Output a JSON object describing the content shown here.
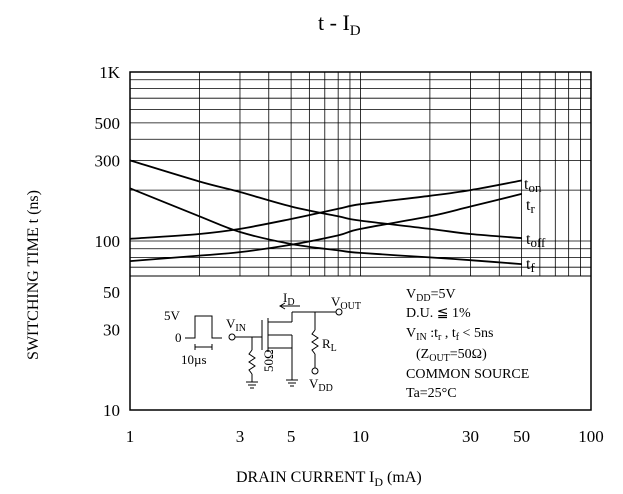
{
  "chart_data": {
    "type": "line",
    "title": {
      "main": "t  -  I",
      "sub": "D"
    },
    "xlabel": {
      "main": "DRAIN CURRENT I",
      "sub": "D",
      "suffix": "  (mA)"
    },
    "ylabel": "SWITCHING TIME t  (ns)",
    "x_scale": "log",
    "y_scale": "log",
    "xlim": [
      1,
      100
    ],
    "ylim": [
      10,
      1000
    ],
    "grid": true,
    "x_ticks": [
      "1",
      "3",
      "5",
      "10",
      "30",
      "50",
      "100"
    ],
    "y_ticks": [
      "1K",
      "500",
      "300",
      "100",
      "50",
      "30",
      "10"
    ],
    "series": [
      {
        "name": "t",
        "sub": "on",
        "points": [
          [
            1,
            103
          ],
          [
            2,
            110
          ],
          [
            3,
            118
          ],
          [
            5,
            135
          ],
          [
            8,
            155
          ],
          [
            10,
            165
          ],
          [
            20,
            185
          ],
          [
            30,
            200
          ],
          [
            50,
            228
          ]
        ]
      },
      {
        "name": "t",
        "sub": "r",
        "points": [
          [
            1,
            76
          ],
          [
            2,
            82
          ],
          [
            3,
            86
          ],
          [
            5,
            95
          ],
          [
            8,
            108
          ],
          [
            10,
            118
          ],
          [
            20,
            140
          ],
          [
            30,
            160
          ],
          [
            50,
            190
          ]
        ]
      },
      {
        "name": "t",
        "sub": "off",
        "points": [
          [
            1,
            300
          ],
          [
            2,
            225
          ],
          [
            3,
            195
          ],
          [
            5,
            160
          ],
          [
            8,
            140
          ],
          [
            10,
            132
          ],
          [
            20,
            118
          ],
          [
            30,
            110
          ],
          [
            50,
            104
          ]
        ]
      },
      {
        "name": "t",
        "sub": "f",
        "points": [
          [
            1,
            205
          ],
          [
            2,
            140
          ],
          [
            3,
            113
          ],
          [
            5,
            96
          ],
          [
            8,
            88
          ],
          [
            10,
            85
          ],
          [
            20,
            80
          ],
          [
            30,
            77
          ],
          [
            50,
            73
          ]
        ]
      }
    ]
  },
  "circuit": {
    "pulse_amp": "5V",
    "pulse_zero": "0",
    "pulse_width": "10µs",
    "vin": {
      "main": "V",
      "sub": "IN"
    },
    "res": "50Ω",
    "id": {
      "main": "I",
      "sub": "D"
    },
    "vout": {
      "main": "V",
      "sub": "OUT"
    },
    "rl": {
      "main": "R",
      "sub": "L"
    },
    "vdd": {
      "main": "V",
      "sub": "DD"
    }
  },
  "conditions": [
    {
      "main": "V",
      "sub": "DD",
      "rest": "=5V"
    },
    {
      "main": "D.U. ≦ 1%",
      "sub": "",
      "rest": ""
    },
    {
      "main": "V",
      "sub": "IN",
      "rest": " :t  , t  < 5ns",
      "sub2": "r",
      "sub3": "f"
    },
    {
      "main": "(Z",
      "sub": "OUT",
      "rest": "=50Ω)"
    },
    {
      "main": "COMMON SOURCE",
      "sub": "",
      "rest": ""
    },
    {
      "main": "Ta=25°C",
      "sub": "",
      "rest": ""
    }
  ]
}
